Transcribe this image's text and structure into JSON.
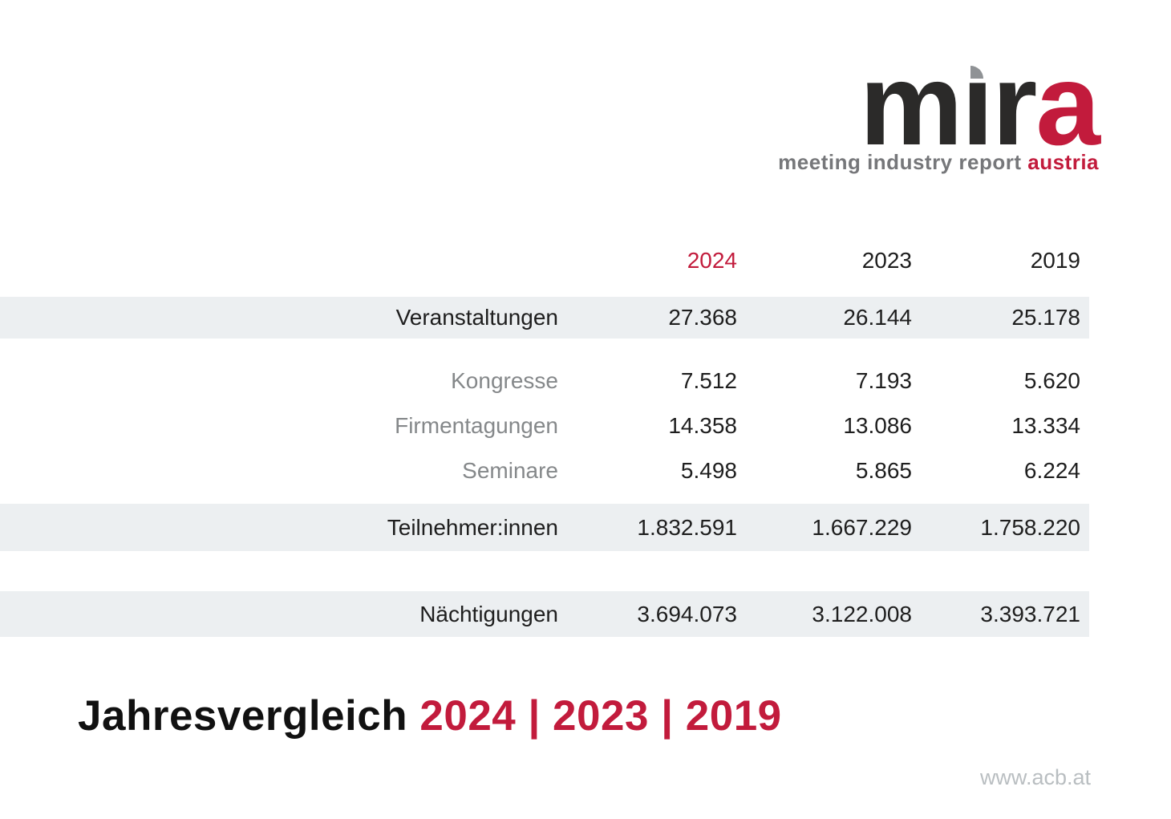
{
  "logo": {
    "brand": "mira",
    "brand_m": "m",
    "brand_i": "ı",
    "brand_r": "r",
    "brand_a": "a",
    "tagline_gray": "meeting industry report",
    "tagline_accent": "austria"
  },
  "table": {
    "columns": [
      "2024",
      "2023",
      "2019"
    ],
    "rows": [
      {
        "label": "Veranstaltungen",
        "values": [
          "27.368",
          "26.144",
          "25.178"
        ]
      },
      {
        "label": "Kongresse",
        "values": [
          "7.512",
          "7.193",
          "5.620"
        ]
      },
      {
        "label": "Firmentagungen",
        "values": [
          "14.358",
          "13.086",
          "13.334"
        ]
      },
      {
        "label": "Seminare",
        "values": [
          "5.498",
          "5.865",
          "6.224"
        ]
      },
      {
        "label": "Teilnehmer:innen",
        "values": [
          "1.832.591",
          "1.667.229",
          "1.758.220"
        ]
      },
      {
        "label": "Nächtigungen",
        "values": [
          "3.694.073",
          "3.122.008",
          "3.393.721"
        ]
      }
    ]
  },
  "footer": {
    "title_prefix": "Jahresvergleich",
    "title_years": "2024 | 2023 | 2019",
    "website": "www.acb.at"
  },
  "colors": {
    "accent_red": "#c21b3c",
    "row_band_gray": "#eceff1",
    "sub_label_gray": "#85888a",
    "text_dark": "#1e1e1e",
    "logo_dot_gray": "#8f9295",
    "website_gray": "#b9bec1"
  }
}
